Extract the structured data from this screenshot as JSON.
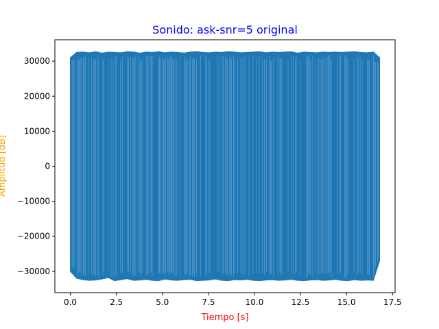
{
  "chart_data": {
    "type": "line",
    "title": "Sonido: ask-snr=5 original",
    "xlabel": "Tiempo [s]",
    "ylabel": "Amplitud [dB]",
    "xlim": [
      -0.84,
      17.64
    ],
    "ylim": [
      -36100,
      36100
    ],
    "x_ticks": [
      0.0,
      2.5,
      5.0,
      7.5,
      10.0,
      12.5,
      15.0,
      17.5
    ],
    "x_tick_labels": [
      "0.0",
      "2.5",
      "5.0",
      "7.5",
      "10.0",
      "12.5",
      "15.0",
      "17.5"
    ],
    "y_ticks": [
      -30000,
      -20000,
      -10000,
      0,
      10000,
      20000,
      30000
    ],
    "y_tick_labels": [
      "−30000",
      "−20000",
      "−10000",
      "0",
      "10000",
      "20000",
      "30000"
    ],
    "grid": false,
    "series": [
      {
        "x_range": [
          0.0,
          16.8
        ],
        "envelope_upper": [
          31000,
          32500,
          32600,
          32400,
          32700,
          32300,
          32600,
          32500,
          32400,
          32700,
          32600,
          32300,
          32600,
          32500,
          32700,
          32400,
          32600,
          32500,
          32300,
          32600,
          32700,
          32500,
          32400,
          32600,
          32500,
          32700,
          32600,
          32400,
          32500,
          32600,
          32700,
          32400,
          32600,
          32500,
          32600,
          32700,
          32300,
          32600,
          32500,
          32400,
          32600,
          32500,
          32600,
          32500,
          32600,
          32700,
          32500,
          32400,
          32600,
          31000
        ],
        "envelope_lower": [
          -30000,
          -32000,
          -32400,
          -32600,
          -32500,
          -32200,
          -31800,
          -32700,
          -32400,
          -32100,
          -32600,
          -32500,
          -32300,
          -32600,
          -32700,
          -32200,
          -32500,
          -32600,
          -32400,
          -32300,
          -32700,
          -32600,
          -32500,
          -32200,
          -32600,
          -32700,
          -32400,
          -32500,
          -32300,
          -32600,
          -32700,
          -32500,
          -32400,
          -32600,
          -32500,
          -32300,
          -32600,
          -32700,
          -32500,
          -32400,
          -32600,
          -32500,
          -32300,
          -32600,
          -32700,
          -32400,
          -32600,
          -32500,
          -32600,
          -27000
        ],
        "color": "#1f77b4"
      }
    ],
    "colors": {
      "title": "#0000ff",
      "xlabel": "#ff0000",
      "ylabel": "#ffa500",
      "axes": "#000000"
    }
  }
}
